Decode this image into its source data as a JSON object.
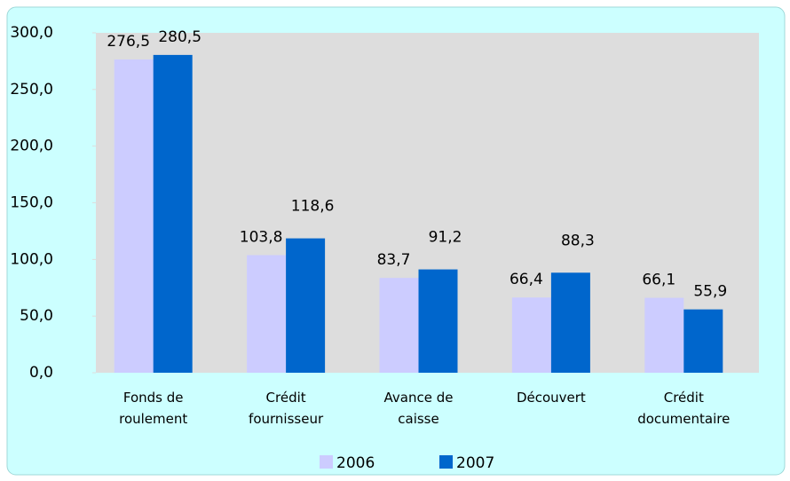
{
  "chart_data": {
    "type": "bar",
    "categories": [
      "Fonds de roulement",
      "Crédit fournisseur",
      "Avance de caisse",
      "Découvert",
      "Crédit documentaire"
    ],
    "series": [
      {
        "name": "2006",
        "color": "#ccccff",
        "values": [
          276.5,
          103.8,
          83.7,
          66.4,
          66.1
        ],
        "value_labels": [
          "276,5",
          "103,8",
          "83,7",
          "66,4",
          "66,1"
        ]
      },
      {
        "name": "2007",
        "color": "#0066cc",
        "values": [
          280.5,
          118.6,
          91.2,
          88.3,
          55.9
        ],
        "value_labels": [
          "280,5",
          "118,6",
          "91,2",
          "88,3",
          "55,9"
        ]
      }
    ],
    "ylim": [
      0,
      300
    ],
    "yticks": [
      {
        "value": 0,
        "label": "0,0"
      },
      {
        "value": 50,
        "label": "50,0"
      },
      {
        "value": 100,
        "label": "100,0"
      },
      {
        "value": 150,
        "label": "150,0"
      },
      {
        "value": 200,
        "label": "200,0"
      },
      {
        "value": 250,
        "label": "250,0"
      },
      {
        "value": 300,
        "label": "300,0"
      }
    ],
    "legend": "bottom"
  }
}
